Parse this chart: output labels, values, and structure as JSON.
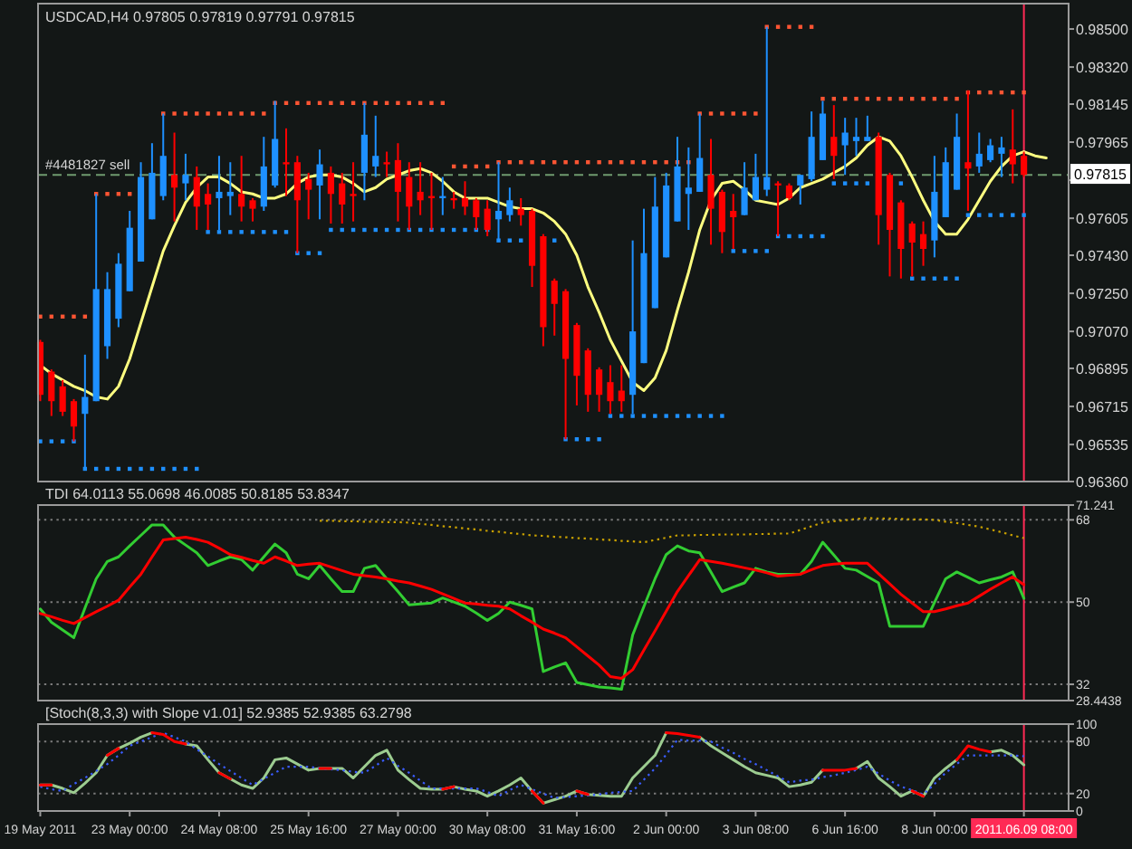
{
  "chart_data": [
    {
      "type": "candlestick",
      "title": "USDCAD,H4 0.97805 0.97819 0.97791 0.97815",
      "categories": [
        null,
        null,
        null,
        null,
        null,
        null,
        null,
        null,
        null,
        null,
        null,
        null,
        null,
        null,
        null,
        null,
        null,
        null,
        null,
        null,
        null,
        null,
        null,
        null,
        null,
        null,
        null,
        null,
        null,
        null,
        null,
        null,
        null,
        null,
        null,
        null,
        null,
        null,
        null,
        null,
        null,
        null,
        null,
        null,
        null,
        null,
        null,
        null,
        null,
        null,
        null,
        null,
        null,
        null,
        null,
        null,
        null,
        null,
        null,
        null,
        null,
        null,
        null,
        null,
        null,
        null,
        null,
        null,
        null,
        null,
        null,
        null,
        null,
        null,
        null,
        null,
        null,
        null,
        null,
        null,
        null,
        null,
        null,
        null,
        null,
        null,
        null,
        null,
        null,
        null,
        null
      ],
      "ohlc": [
        [
          0.9702,
          0.9703,
          0.9674,
          0.9677
        ],
        [
          0.9688,
          0.9689,
          0.9667,
          0.9674
        ],
        [
          0.9681,
          0.9684,
          0.9667,
          0.9669
        ],
        [
          0.9674,
          0.9675,
          0.9655,
          0.9662
        ],
        [
          0.9668,
          0.9696,
          0.9642,
          0.9676
        ],
        [
          0.9674,
          0.9772,
          0.9674,
          0.9727
        ],
        [
          0.97,
          0.9735,
          0.9694,
          0.9727
        ],
        [
          0.9713,
          0.9744,
          0.9709,
          0.9739
        ],
        [
          0.9726,
          0.9764,
          0.9726,
          0.9756
        ],
        [
          0.974,
          0.9787,
          0.974,
          0.978
        ],
        [
          0.976,
          0.9796,
          0.976,
          0.9782
        ],
        [
          0.9771,
          0.981,
          0.9769,
          0.979
        ],
        [
          0.9781,
          0.9801,
          0.9759,
          0.9775
        ],
        [
          0.9777,
          0.9791,
          0.9769,
          0.9781
        ],
        [
          0.978,
          0.9785,
          0.9755,
          0.9766
        ],
        [
          0.9772,
          0.9777,
          0.9755,
          0.9767
        ],
        [
          0.977,
          0.979,
          0.9755,
          0.9773
        ],
        [
          0.9771,
          0.9787,
          0.9762,
          0.9773
        ],
        [
          0.9772,
          0.979,
          0.9759,
          0.9766
        ],
        [
          0.9769,
          0.977,
          0.9759,
          0.9765
        ],
        [
          0.9766,
          0.9799,
          0.9764,
          0.9785
        ],
        [
          0.9776,
          0.9816,
          0.9775,
          0.9798
        ],
        [
          0.9787,
          0.9803,
          0.9771,
          0.9786
        ],
        [
          0.9787,
          0.979,
          0.9744,
          0.9769
        ],
        [
          0.9779,
          0.9782,
          0.976,
          0.9774
        ],
        [
          0.9776,
          0.9793,
          0.976,
          0.9786
        ],
        [
          0.9782,
          0.9785,
          0.9758,
          0.9772
        ],
        [
          0.9777,
          0.9782,
          0.9758,
          0.9767
        ],
        [
          0.9772,
          0.9787,
          0.9759,
          0.9771
        ],
        [
          0.9782,
          0.9815,
          0.9769,
          0.98
        ],
        [
          0.9785,
          0.9809,
          0.978,
          0.979
        ],
        [
          0.9787,
          0.9792,
          0.978,
          0.9786
        ],
        [
          0.9788,
          0.9796,
          0.9759,
          0.9773
        ],
        [
          0.978,
          0.9787,
          0.9755,
          0.9766
        ],
        [
          0.9773,
          0.9787,
          0.9762,
          0.9769
        ],
        [
          0.9771,
          0.9782,
          0.9755,
          0.977
        ],
        [
          0.977,
          0.978,
          0.9762,
          0.9771
        ],
        [
          0.977,
          0.9773,
          0.9765,
          0.9769
        ],
        [
          0.977,
          0.9778,
          0.9762,
          0.9766
        ],
        [
          0.9769,
          0.977,
          0.9755,
          0.9761
        ],
        [
          0.9765,
          0.9769,
          0.9752,
          0.9755
        ],
        [
          0.976,
          0.9787,
          0.975,
          0.9764
        ],
        [
          0.9762,
          0.9775,
          0.9759,
          0.9769
        ],
        [
          0.9765,
          0.977,
          0.9757,
          0.9762
        ],
        [
          0.9764,
          0.9765,
          0.9728,
          0.9738
        ],
        [
          0.9752,
          0.9753,
          0.97,
          0.9709
        ],
        [
          0.9731,
          0.9732,
          0.9705,
          0.972
        ],
        [
          0.9726,
          0.9727,
          0.9656,
          0.9694
        ],
        [
          0.971,
          0.9711,
          0.9672,
          0.9686
        ],
        [
          0.9698,
          0.9699,
          0.9669,
          0.9677
        ],
        [
          0.9689,
          0.969,
          0.9669,
          0.9677
        ],
        [
          0.9683,
          0.9691,
          0.9668,
          0.9674
        ],
        [
          0.9679,
          0.9691,
          0.9669,
          0.9674
        ],
        [
          0.9677,
          0.975,
          0.9668,
          0.9707
        ],
        [
          0.9692,
          0.9765,
          0.9692,
          0.9744
        ],
        [
          0.9718,
          0.978,
          0.9718,
          0.9766
        ],
        [
          0.9742,
          0.9782,
          0.9742,
          0.9776
        ],
        [
          0.9759,
          0.9799,
          0.9759,
          0.9785
        ],
        [
          0.9772,
          0.9794,
          0.9755,
          0.9775
        ],
        [
          0.9773,
          0.981,
          0.9773,
          0.9789
        ],
        [
          0.9781,
          0.9798,
          0.9748,
          0.9765
        ],
        [
          0.9773,
          0.9774,
          0.9744,
          0.9754
        ],
        [
          0.9764,
          0.9772,
          0.9746,
          0.9761
        ],
        [
          0.9762,
          0.9787,
          0.9762,
          0.9775
        ],
        [
          0.9769,
          0.9791,
          0.9769,
          0.978
        ],
        [
          0.9774,
          0.9851,
          0.9771,
          0.978
        ],
        [
          0.9777,
          0.9778,
          0.9752,
          0.9776
        ],
        [
          0.9776,
          0.9777,
          0.9769,
          0.977
        ],
        [
          0.9776,
          0.9781,
          0.9767,
          0.9781
        ],
        [
          0.9779,
          0.9811,
          0.9778,
          0.9799
        ],
        [
          0.9788,
          0.9816,
          0.9788,
          0.981
        ],
        [
          0.9799,
          0.9814,
          0.9779,
          0.979
        ],
        [
          0.9795,
          0.9808,
          0.9781,
          0.9801
        ],
        [
          0.9797,
          0.9808,
          0.979,
          0.9799
        ],
        [
          0.9797,
          0.9809,
          0.9797,
          0.9799
        ],
        [
          0.9799,
          0.9801,
          0.9748,
          0.9762
        ],
        [
          0.9781,
          0.9782,
          0.9733,
          0.9755
        ],
        [
          0.9768,
          0.9769,
          0.9732,
          0.9746
        ],
        [
          0.9758,
          0.9759,
          0.9733,
          0.9749
        ],
        [
          0.9753,
          0.9759,
          0.9738,
          0.9746
        ],
        [
          0.975,
          0.979,
          0.9742,
          0.9773
        ],
        [
          0.9761,
          0.9794,
          0.9761,
          0.9787
        ],
        [
          0.9774,
          0.981,
          0.9774,
          0.9799
        ],
        [
          0.9787,
          0.9821,
          0.9764,
          0.9784
        ],
        [
          0.9785,
          0.9801,
          0.9782,
          0.9791
        ],
        [
          0.9788,
          0.9798,
          0.9787,
          0.9795
        ],
        [
          0.9791,
          0.9799,
          0.978,
          0.9794
        ],
        [
          0.9793,
          0.9812,
          0.9777,
          0.9786
        ],
        [
          0.979,
          0.9792,
          0.978,
          0.9781
        ],
        null,
        null
      ],
      "colors": [
        "#ff0000",
        "#ff0000",
        "#ff0000",
        "#ff0000",
        "#1e90ff",
        "#1e90ff",
        "#1e90ff",
        "#1e90ff",
        "#1e90ff",
        "#1e90ff",
        "#1e90ff",
        "#1e90ff",
        "#ff0000",
        "#1e90ff",
        "#ff0000",
        "#ff0000",
        "#1e90ff",
        "#1e90ff",
        "#ff0000",
        "#ff0000",
        "#1e90ff",
        "#1e90ff",
        "#ff0000",
        "#ff0000",
        "#ff0000",
        "#1e90ff",
        "#ff0000",
        "#ff0000",
        "#ff0000",
        "#1e90ff",
        "#1e90ff",
        "#ff0000",
        "#ff0000",
        "#ff0000",
        "#ff0000",
        "#ff0000",
        "#1e90ff",
        "#ff0000",
        "#ff0000",
        "#ff0000",
        "#ff0000",
        "#1e90ff",
        "#1e90ff",
        "#ff0000",
        "#ff0000",
        "#ff0000",
        "#ff0000",
        "#ff0000",
        "#ff0000",
        "#ff0000",
        "#ff0000",
        "#ff0000",
        "#ff0000",
        "#1e90ff",
        "#1e90ff",
        "#1e90ff",
        "#1e90ff",
        "#1e90ff",
        "#1e90ff",
        "#1e90ff",
        "#ff0000",
        "#ff0000",
        "#ff0000",
        "#1e90ff",
        "#1e90ff",
        "#1e90ff",
        "#ff0000",
        "#ff0000",
        "#1e90ff",
        "#1e90ff",
        "#1e90ff",
        "#ff0000",
        "#1e90ff",
        "#1e90ff",
        "#1e90ff",
        "#ff0000",
        "#ff0000",
        "#ff0000",
        "#ff0000",
        "#ff0000",
        "#1e90ff",
        "#1e90ff",
        "#1e90ff",
        "#ff0000",
        "#1e90ff",
        "#1e90ff",
        "#1e90ff",
        "#ff0000",
        "#ff0000",
        null,
        null
      ],
      "series": [
        {
          "type": "line",
          "color": "#ffff80",
          "values": [
            0.9691,
            0.9687,
            0.9684,
            0.9681,
            0.9679,
            0.9676,
            0.9675,
            0.9681,
            0.9694,
            0.9711,
            0.9728,
            0.9745,
            0.9757,
            0.9768,
            0.9775,
            0.978,
            0.978,
            0.9777,
            0.9773,
            0.9772,
            0.977,
            0.977,
            0.9772,
            0.9777,
            0.978,
            0.9781,
            0.9781,
            0.978,
            0.9777,
            0.9773,
            0.9775,
            0.9779,
            0.9781,
            0.9783,
            0.9784,
            0.9782,
            0.9778,
            0.9773,
            0.977,
            0.977,
            0.977,
            0.9768,
            0.9766,
            0.9765,
            0.9765,
            0.9763,
            0.9759,
            0.9753,
            0.9743,
            0.9728,
            0.9716,
            0.9703,
            0.9693,
            0.9683,
            0.9679,
            0.9685,
            0.9698,
            0.9717,
            0.9735,
            0.9755,
            0.9769,
            0.9777,
            0.9778,
            0.9774,
            0.9769,
            0.9768,
            0.9767,
            0.977,
            0.9775,
            0.9777,
            0.9779,
            0.9782,
            0.9785,
            0.9789,
            0.9795,
            0.9799,
            0.9797,
            0.979,
            0.978,
            0.9769,
            0.9759,
            0.9753,
            0.9753,
            0.976,
            0.9769,
            0.9778,
            0.9785,
            0.979,
            0.9792,
            0.979,
            0.9789
          ]
        },
        {
          "type": "scatter",
          "marker": "square",
          "color": "#ff5533",
          "values": [
            0.9714,
            0.9714,
            0.9714,
            0.9714,
            0.9714,
            0.9772,
            0.9772,
            0.9772,
            0.9772,
            null,
            null,
            0.981,
            0.981,
            0.981,
            0.981,
            0.981,
            0.981,
            0.981,
            0.981,
            0.981,
            0.981,
            0.9815,
            0.9815,
            0.9815,
            0.9815,
            0.9815,
            0.9815,
            0.9815,
            0.9815,
            0.9815,
            0.9815,
            0.9815,
            0.9815,
            0.9815,
            0.9815,
            0.9815,
            0.9815,
            0.9785,
            0.9785,
            0.9785,
            0.9785,
            0.9787,
            0.9787,
            0.9787,
            0.9787,
            0.9787,
            0.9787,
            0.9787,
            0.9787,
            0.9787,
            0.9787,
            0.9787,
            0.9787,
            0.9787,
            0.9787,
            0.9787,
            0.9787,
            0.9787,
            0.9787,
            0.981,
            0.981,
            0.981,
            0.981,
            0.981,
            0.981,
            0.9851,
            0.9851,
            0.9851,
            0.9851,
            0.9851,
            0.9817,
            0.9817,
            0.9817,
            0.9817,
            0.9817,
            0.9817,
            0.9817,
            0.9817,
            0.9817,
            0.9817,
            0.9817,
            0.9817,
            0.9817,
            0.982,
            0.982,
            0.982,
            0.982,
            0.982,
            0.982,
            null,
            null
          ]
        },
        {
          "type": "scatter",
          "marker": "square",
          "color": "#1e90ff",
          "values": [
            0.9655,
            0.9655,
            0.9655,
            0.9655,
            0.9642,
            0.9642,
            0.9642,
            0.9642,
            0.9642,
            0.9642,
            0.9642,
            0.9642,
            0.9642,
            0.9642,
            0.9642,
            0.9754,
            0.9754,
            0.9754,
            0.9754,
            0.9754,
            0.9754,
            0.9754,
            0.9754,
            0.9744,
            0.9744,
            0.9744,
            0.9755,
            0.9755,
            0.9755,
            0.9755,
            0.9755,
            0.9755,
            0.9755,
            0.9755,
            0.9755,
            0.9755,
            0.9755,
            0.9755,
            0.9755,
            0.9755,
            0.9755,
            0.975,
            0.975,
            0.975,
            null,
            null,
            0.975,
            0.9656,
            0.9656,
            0.9656,
            0.9656,
            0.9667,
            0.9667,
            0.9667,
            0.9667,
            0.9667,
            0.9667,
            0.9667,
            0.9667,
            0.9667,
            0.9667,
            0.9667,
            0.9745,
            0.9745,
            0.9745,
            0.9745,
            0.9752,
            0.9752,
            0.9752,
            0.9752,
            0.9752,
            0.9777,
            0.9777,
            0.9777,
            0.9777,
            null,
            null,
            0.9777,
            0.9732,
            0.9732,
            0.9732,
            0.9732,
            0.9732,
            0.9762,
            0.9762,
            0.9762,
            0.9762,
            0.9762,
            0.9762,
            null,
            null
          ]
        }
      ],
      "ylim": [
        0.9636,
        0.9862
      ],
      "yticks": [
        {
          "value": 0.985,
          "label": "0.98500"
        },
        {
          "value": 0.9832,
          "label": "0.98320"
        },
        0.98145,
        0.97965,
        {
          "value": 0.97785,
          "label": null
        },
        0.97605,
        {
          "value": 0.9743,
          "label": "0.97430"
        },
        {
          "value": 0.9725,
          "label": "0.97250"
        },
        {
          "value": 0.9707,
          "label": "0.97070"
        },
        0.96895,
        0.96715,
        0.96535,
        {
          "value": 0.9636,
          "label": "0.96360"
        }
      ],
      "ref_lines": [
        {
          "axis": "y",
          "value": 0.9781,
          "label": "#4481827 sell",
          "color": "#6f9a6f",
          "line_style": "dashed"
        }
      ],
      "annotations": [
        {
          "text": "0.97815",
          "y": 0.97815
        }
      ]
    },
    {
      "type": "line",
      "title": "TDI 64.0113 55.0698 46.0085 50.8185 53.8347",
      "categories": [
        null,
        null,
        null,
        null,
        null,
        null,
        null,
        null,
        null,
        null,
        null,
        null,
        null,
        null,
        null,
        null,
        null,
        null,
        null,
        null,
        null,
        null,
        null,
        null,
        null,
        null,
        null,
        null,
        null,
        null,
        null,
        null,
        null,
        null,
        null,
        null,
        null,
        null,
        null,
        null,
        null,
        null,
        null,
        null,
        null,
        null,
        null,
        null,
        null,
        null,
        null,
        null,
        null,
        null,
        null,
        null,
        null,
        null,
        null,
        null,
        null,
        null,
        null,
        null,
        null,
        null,
        null,
        null,
        null,
        null,
        null,
        null,
        null,
        null,
        null,
        null,
        null,
        null,
        null,
        null,
        null,
        null,
        null,
        null,
        null,
        null,
        null,
        null,
        null,
        null,
        null
      ],
      "series": [
        {
          "color": "#c8a000",
          "line_style": "dotted",
          "values": [
            null,
            null,
            null,
            null,
            null,
            null,
            null,
            null,
            null,
            null,
            null,
            null,
            null,
            null,
            null,
            null,
            null,
            null,
            null,
            null,
            null,
            null,
            null,
            null,
            null,
            67.8,
            67.8,
            67.7,
            67.7,
            67.6,
            67.6,
            67.5,
            67.5,
            67.4,
            67.1,
            66.9,
            66.6,
            66.4,
            66.1,
            65.9,
            65.6,
            65.4,
            65.1,
            64.9,
            64.6,
            64.5,
            64.3,
            64.2,
            64.0,
            63.9,
            63.7,
            63.6,
            63.4,
            63.3,
            63.1,
            63.6,
            64.1,
            64.6,
            64.6,
            64.7,
            64.7,
            64.8,
            64.8,
            64.8,
            64.9,
            64.9,
            65.0,
            65.0,
            65.8,
            66.6,
            67.4,
            67.7,
            67.9,
            68.2,
            68.4,
            68.3,
            68.3,
            68.2,
            68.1,
            68.1,
            68.0,
            67.6,
            67.3,
            66.9,
            66.5,
            65.9,
            65.3,
            64.6,
            64.0,
            null,
            null
          ]
        },
        {
          "color": "#32cd32",
          "values": [
            48.5,
            45.6,
            43.9,
            42.2,
            48.7,
            55.1,
            58.9,
            59.9,
            62.3,
            64.6,
            66.9,
            66.9,
            64.2,
            62.5,
            60.8,
            58.0,
            59.0,
            59.9,
            59.3,
            57.0,
            59.9,
            62.7,
            60.8,
            56.1,
            55.1,
            58.0,
            55.1,
            52.3,
            52.3,
            57.4,
            58.0,
            55.1,
            52.3,
            49.4,
            49.6,
            49.8,
            50.9,
            50.0,
            49.1,
            47.6,
            46.0,
            47.5,
            50.0,
            49.3,
            48.5,
            34.8,
            35.8,
            36.7,
            32.4,
            31.9,
            31.4,
            31.2,
            30.9,
            42.8,
            49.0,
            55.1,
            60.4,
            62.3,
            61.2,
            60.8,
            56.6,
            52.3,
            53.3,
            54.2,
            57.4,
            56.6,
            56.1,
            56.1,
            56.1,
            58.9,
            63.1,
            60.3,
            57.4,
            57.0,
            55.6,
            54.2,
            44.7,
            44.7,
            44.7,
            44.7,
            49.9,
            55.1,
            56.6,
            55.4,
            54.2,
            54.9,
            55.5,
            56.6,
            50.8,
            null,
            null
          ]
        },
        {
          "color": "#ff0000",
          "values": [
            47.5,
            46.8,
            46.0,
            45.3,
            46.6,
            47.9,
            49.1,
            50.4,
            53.3,
            56.1,
            59.9,
            63.6,
            63.9,
            64.2,
            63.7,
            63.1,
            61.8,
            60.4,
            59.8,
            59.1,
            58.5,
            59.9,
            59.0,
            58.0,
            58.3,
            58.5,
            57.7,
            56.9,
            56.1,
            55.8,
            55.5,
            55.1,
            54.6,
            54.2,
            53.5,
            52.8,
            51.8,
            50.8,
            49.8,
            49.6,
            49.3,
            49.1,
            48.5,
            47.0,
            45.6,
            44.1,
            43.2,
            42.2,
            40.2,
            38.2,
            36.2,
            33.7,
            33.3,
            35.2,
            39.5,
            43.7,
            48.0,
            52.3,
            55.8,
            59.3,
            58.9,
            58.5,
            58.0,
            57.5,
            57.0,
            56.4,
            55.7,
            55.9,
            56.1,
            57.1,
            58.0,
            58.3,
            58.5,
            58.5,
            58.5,
            56.2,
            54.0,
            51.7,
            49.8,
            47.9,
            47.9,
            48.5,
            49.2,
            49.8,
            51.3,
            52.8,
            54.2,
            55.5,
            53.8,
            null,
            null
          ]
        }
      ],
      "ylim": [
        28.4438,
        71.241
      ],
      "yticks": [
        71.241,
        68,
        50,
        32,
        28.4438
      ],
      "grid": "y"
    },
    {
      "type": "line",
      "title": "[Stoch(8,3,3) with Slope v1.01] 52.9385 52.9385 63.2798",
      "categories": [
        "19 May 2011",
        null,
        null,
        null,
        null,
        null,
        null,
        null,
        "23 May 00:00",
        null,
        null,
        null,
        null,
        null,
        null,
        null,
        "24 May 08:00",
        null,
        null,
        null,
        null,
        null,
        null,
        null,
        "25 May 16:00",
        null,
        null,
        null,
        null,
        null,
        null,
        null,
        "27 May 00:00",
        null,
        null,
        null,
        null,
        null,
        null,
        null,
        "30 May 08:00",
        null,
        null,
        null,
        null,
        null,
        null,
        null,
        "31 May 16:00",
        null,
        null,
        null,
        null,
        null,
        null,
        null,
        "2 Jun 00:00",
        null,
        null,
        null,
        null,
        null,
        null,
        null,
        "3 Jun 08:00",
        null,
        null,
        null,
        null,
        null,
        null,
        null,
        "6 Jun 16:00",
        null,
        null,
        null,
        null,
        null,
        null,
        null,
        "8 Jun 00:00",
        null,
        null,
        null,
        null,
        null,
        null,
        null,
        "2011.06.09 08:00",
        null,
        null
      ],
      "series": [
        {
          "color": "#9ccc90",
          "values": [
            30,
            30,
            26,
            21,
            32,
            44,
            64,
            72,
            78,
            85,
            90,
            null,
            null,
            77,
            75,
            59,
            44,
            37,
            30,
            26,
            38,
            59,
            61,
            54,
            47,
            49,
            49,
            49,
            38,
            51,
            64,
            70,
            47,
            36,
            26,
            25,
            25,
            28,
            25,
            23,
            17,
            23,
            30,
            38,
            23,
            9,
            13,
            17,
            23,
            19,
            18,
            17,
            17,
            38,
            51,
            64,
            90,
            null,
            null,
            85,
            75,
            67,
            59,
            51,
            44,
            41,
            38,
            28,
            30,
            33,
            47,
            null,
            null,
            49,
            57,
            38,
            28,
            17,
            23,
            17,
            38,
            49,
            59,
            null,
            null,
            68,
            70,
            64,
            53,
            null,
            null
          ]
        },
        {
          "color": "#3a5cff",
          "line_style": "dotted",
          "values": [
            28,
            25,
            23,
            31,
            38,
            46,
            54,
            64,
            75,
            80,
            85,
            90,
            85,
            80,
            71,
            63,
            54,
            46,
            38,
            30,
            37,
            44,
            51,
            51,
            51,
            49,
            48,
            47,
            45,
            44,
            52,
            61,
            52,
            44,
            35,
            26,
            26,
            26,
            26,
            26,
            22,
            17,
            24,
            30,
            25,
            20,
            15,
            16,
            17,
            18,
            19,
            21,
            22,
            23,
            36,
            49,
            65,
            82,
            81,
            81,
            80,
            73,
            67,
            60,
            54,
            47,
            40,
            33,
            35,
            36,
            39,
            41,
            44,
            47,
            51,
            43,
            35,
            28,
            24,
            19,
            31,
            44,
            54,
            64,
            64,
            64,
            64,
            64,
            63,
            null,
            null
          ]
        },
        {
          "color": "#ff0000",
          "values": [
            30,
            30,
            null,
            null,
            null,
            null,
            64,
            72,
            null,
            null,
            90,
            88,
            80,
            77,
            null,
            null,
            44,
            37,
            null,
            null,
            null,
            null,
            null,
            null,
            null,
            49,
            49,
            null,
            null,
            null,
            null,
            null,
            null,
            null,
            null,
            null,
            25,
            28,
            null,
            null,
            null,
            null,
            null,
            null,
            23,
            9,
            null,
            null,
            23,
            19,
            null,
            null,
            null,
            null,
            null,
            null,
            90,
            89,
            87,
            85,
            null,
            null,
            null,
            null,
            null,
            null,
            null,
            null,
            null,
            null,
            47,
            47,
            47,
            49,
            null,
            null,
            null,
            null,
            23,
            17,
            null,
            null,
            59,
            75,
            71,
            68,
            null,
            null,
            null,
            null,
            null
          ]
        }
      ],
      "ylim": [
        0,
        100
      ],
      "yticks": [
        100,
        80,
        20,
        0
      ],
      "grid": "y",
      "ref_lines": [
        {
          "axis": "x",
          "value": "2011.06.09 08:00",
          "color": "#ff2a55"
        }
      ]
    }
  ]
}
